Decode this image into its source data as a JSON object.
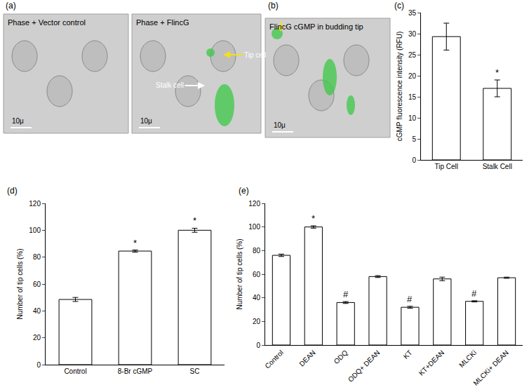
{
  "chart_data": [
    {
      "type": "bar",
      "title": "(c)",
      "categories": [
        "Tip Cell",
        "Stalk Cell"
      ],
      "values": [
        29.3,
        17
      ],
      "error": [
        3.2,
        2.0
      ],
      "color": "#ffffff",
      "y_label": "cGMP fluorescence intensity (RFU)",
      "ylim": [
        0,
        35
      ],
      "yticks": [
        0,
        5,
        10,
        15,
        20,
        25,
        30,
        35
      ],
      "grid": false,
      "annotations": [
        {
          "category": "Stalk Cell",
          "text": "*"
        }
      ]
    },
    {
      "type": "bar",
      "title": "(d)",
      "categories": [
        "Control",
        "8-Br cGMP",
        "SC"
      ],
      "values": [
        48.5,
        84.5,
        100
      ],
      "error": [
        1.5,
        0.8,
        1.5
      ],
      "color": "#ffffff",
      "y_label": "Number of tip cells (%)",
      "ylim": [
        0,
        120
      ],
      "yticks": [
        0,
        20,
        40,
        60,
        80,
        100,
        120
      ],
      "grid": false,
      "annotations": [
        {
          "category": "8-Br cGMP",
          "text": "*"
        },
        {
          "category": "SC",
          "text": "*"
        }
      ]
    },
    {
      "type": "bar",
      "title": "(e)",
      "categories": [
        "Control",
        "DEAN",
        "ODQ",
        "ODQ+ DEAN",
        "KT",
        "KT+DEAN",
        "MLCKi",
        "MLCKi+ DEAN"
      ],
      "values": [
        76,
        100,
        36,
        58,
        32,
        56,
        37,
        57
      ],
      "error": [
        1,
        1,
        0.8,
        0.8,
        0.8,
        1.5,
        0.5,
        0.5
      ],
      "color": "#ffffff",
      "y_label": "Number of tip cells (%)",
      "ylim": [
        0,
        120
      ],
      "yticks": [
        0,
        20,
        40,
        60,
        80,
        100,
        120
      ],
      "grid": false,
      "annotations": [
        {
          "category": "DEAN",
          "text": "*"
        },
        {
          "category": "ODQ",
          "text": "#"
        },
        {
          "category": "KT",
          "text": "#"
        },
        {
          "category": "MLCKi",
          "text": "#"
        }
      ]
    }
  ],
  "image_panels": [
    {
      "label": "(a)",
      "images": [
        {
          "caption": "Phase + Vector control",
          "scale_bar": "10μ"
        },
        {
          "caption": "Phase + FlincG",
          "scale_bar": "10μ",
          "markers": [
            "Tip cell",
            "Stalk cell"
          ]
        }
      ]
    },
    {
      "label": "(b)",
      "images": [
        {
          "caption": "FlincG cGMP in budding tip",
          "scale_bar": "10μ"
        }
      ]
    }
  ]
}
